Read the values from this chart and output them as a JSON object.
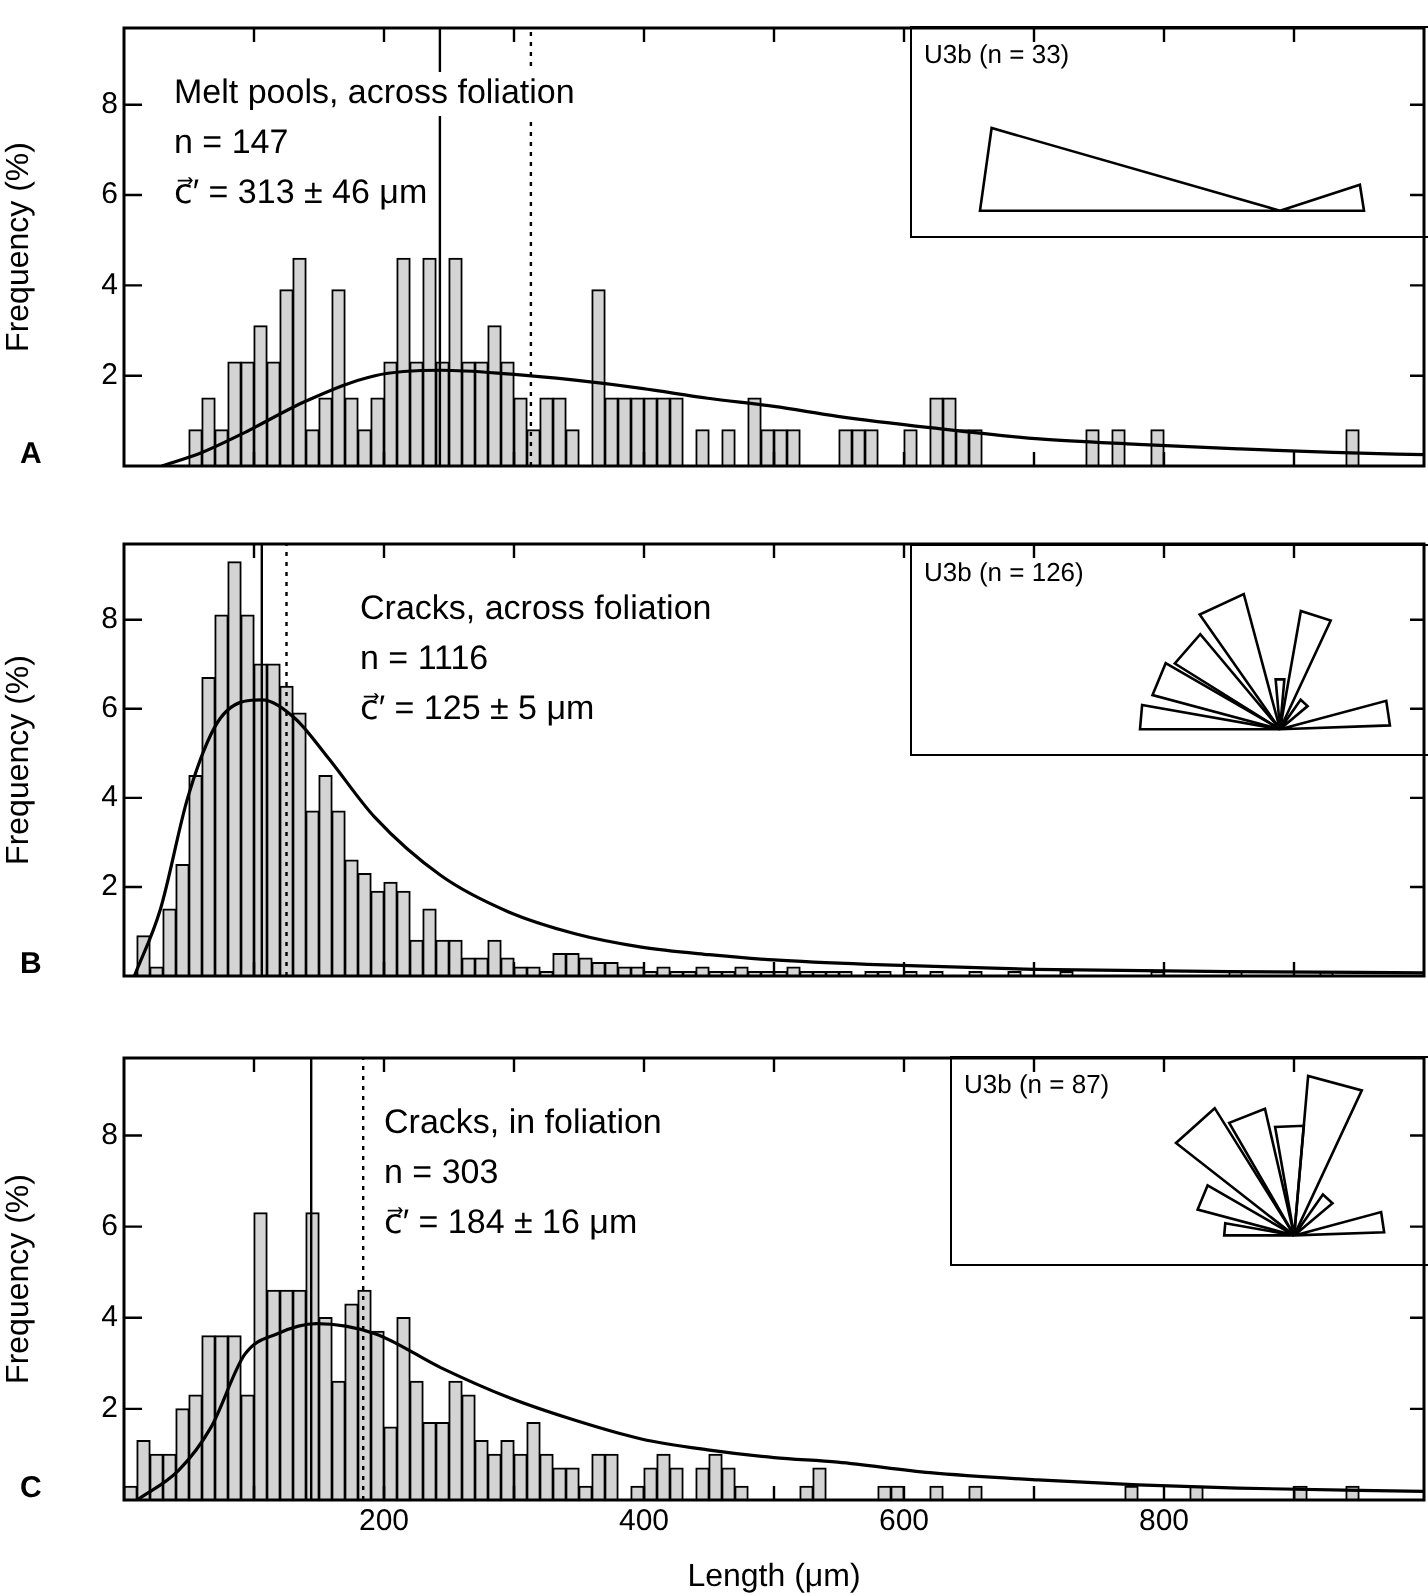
{
  "chart_data": [
    {
      "type": "histogram",
      "ylabel": "Frequency (%)",
      "xlim": [
        0,
        1000
      ],
      "ylim": [
        0,
        9.7
      ],
      "xticks": [
        {
          "value": 100,
          "label": null
        },
        {
          "value": 200,
          "label": null
        },
        {
          "value": 300,
          "label": null
        },
        {
          "value": 400,
          "label": null
        },
        {
          "value": 500,
          "label": null
        },
        {
          "value": 600,
          "label": null
        },
        {
          "value": 700,
          "label": null
        },
        {
          "value": 800,
          "label": null
        },
        {
          "value": 900,
          "label": null
        }
      ],
      "yticks": [
        2,
        4,
        6,
        8
      ],
      "tick_labels": "y",
      "grid": false,
      "legend": false,
      "annotations": [
        "Melt pools, across foliation",
        "n = 147",
        "c⃗′ = 313 ± 46 μm",
        "U3b (n = 33)",
        "A"
      ],
      "ref_lines": [
        {
          "axis": "x",
          "value": 243,
          "color": "#000000",
          "line_style": "solid"
        },
        {
          "axis": "x",
          "value": 313,
          "color": "#000000",
          "line_style": "dotted"
        }
      ],
      "series": [
        {
          "type": "histogram",
          "color": "#d4d4d4",
          "bins": [
            0,
            10,
            20,
            30,
            40,
            50,
            60,
            70,
            80,
            90,
            100,
            110,
            120,
            130,
            140,
            150,
            160,
            170,
            180,
            190,
            200,
            210,
            220,
            230,
            240,
            250,
            260,
            270,
            280,
            290,
            300,
            310,
            320,
            330,
            340,
            350,
            360,
            370,
            380,
            390,
            400,
            410,
            420,
            430,
            440,
            450,
            460,
            470,
            480,
            490,
            500,
            510,
            520,
            530,
            540,
            550,
            560,
            570,
            580,
            590,
            600,
            610,
            620,
            630,
            640,
            650,
            660,
            670,
            680,
            690,
            700,
            710,
            720,
            730,
            740,
            750,
            760,
            770,
            780,
            790,
            800,
            810,
            820,
            830,
            840,
            850,
            860,
            870,
            880,
            890,
            900,
            910,
            920,
            930,
            940,
            950,
            960,
            970,
            980,
            990,
            1000
          ],
          "values": [
            0,
            0,
            0,
            0,
            0,
            0.8,
            1.5,
            0.8,
            2.3,
            2.3,
            3.1,
            2.3,
            3.9,
            4.6,
            0.8,
            1.5,
            3.9,
            1.5,
            0.8,
            1.5,
            2.3,
            4.6,
            2.3,
            4.6,
            2.3,
            4.6,
            2.3,
            2.3,
            3.1,
            2.3,
            1.5,
            0.8,
            1.5,
            1.5,
            0.8,
            0,
            3.9,
            1.5,
            1.5,
            1.5,
            1.5,
            1.5,
            1.5,
            0,
            0.8,
            0,
            0.8,
            0,
            1.5,
            0.8,
            0.8,
            0.8,
            0,
            0,
            0,
            0.8,
            0.8,
            0.8,
            0,
            0,
            0.8,
            0,
            1.5,
            1.5,
            0.8,
            0.8,
            0,
            0,
            0,
            0,
            0,
            0,
            0,
            0,
            0.8,
            0,
            0.8,
            0,
            0,
            0.8,
            0,
            0,
            0,
            0,
            0,
            0,
            0,
            0,
            0,
            0,
            0,
            0,
            0,
            0,
            0.8,
            0,
            0,
            0,
            0,
            0
          ]
        },
        {
          "type": "line",
          "color": "#000000",
          "x": [
            29,
            60,
            90,
            141,
            193,
            244,
            295,
            347,
            398,
            449,
            500,
            549,
            620,
            704,
            780,
            857,
            930,
            1000
          ],
          "values": [
            0,
            0.3,
            0.7,
            1.45,
            2.0,
            2.12,
            2.04,
            1.9,
            1.72,
            1.5,
            1.32,
            1.1,
            0.85,
            0.6,
            0.48,
            0.38,
            0.3,
            0.25
          ]
        }
      ]
    },
    {
      "type": "histogram",
      "ylabel": "Frequency (%)",
      "xlim": [
        0,
        1000
      ],
      "ylim": [
        0,
        9.7
      ],
      "xticks": [
        {
          "value": 100,
          "label": null
        },
        {
          "value": 200,
          "label": null
        },
        {
          "value": 300,
          "label": null
        },
        {
          "value": 400,
          "label": null
        },
        {
          "value": 500,
          "label": null
        },
        {
          "value": 600,
          "label": null
        },
        {
          "value": 700,
          "label": null
        },
        {
          "value": 800,
          "label": null
        },
        {
          "value": 900,
          "label": null
        }
      ],
      "yticks": [
        2,
        4,
        6,
        8
      ],
      "tick_labels": "y",
      "grid": false,
      "legend": false,
      "annotations": [
        "Cracks, across foliation",
        "n = 1116",
        "c⃗′ = 125 ± 5 μm",
        "U3b (n = 126)",
        "B"
      ],
      "ref_lines": [
        {
          "axis": "x",
          "value": 106,
          "color": "#000000",
          "line_style": "solid"
        },
        {
          "axis": "x",
          "value": 125,
          "color": "#000000",
          "line_style": "dotted"
        }
      ],
      "series": [
        {
          "type": "histogram",
          "color": "#d4d4d4",
          "bins": [
            0,
            10,
            20,
            30,
            40,
            50,
            60,
            70,
            80,
            90,
            100,
            110,
            120,
            130,
            140,
            150,
            160,
            170,
            180,
            190,
            200,
            210,
            220,
            230,
            240,
            250,
            260,
            270,
            280,
            290,
            300,
            310,
            320,
            330,
            340,
            350,
            360,
            370,
            380,
            390,
            400,
            410,
            420,
            430,
            440,
            450,
            460,
            470,
            480,
            490,
            500,
            510,
            520,
            530,
            540,
            550,
            560,
            570,
            580,
            590,
            600,
            610,
            620,
            630,
            640,
            650,
            660,
            670,
            680,
            690,
            700,
            710,
            720,
            730,
            740,
            750,
            760,
            770,
            780,
            790,
            800,
            810,
            820,
            830,
            840,
            850,
            860,
            870,
            880,
            890,
            900,
            910,
            920,
            930,
            940,
            950,
            960,
            970,
            980,
            990,
            1000
          ],
          "values": [
            0,
            0.9,
            0.2,
            1.5,
            2.5,
            4.5,
            6.7,
            8.1,
            9.3,
            8.1,
            7.0,
            7.0,
            6.5,
            5.9,
            3.7,
            4.5,
            3.7,
            2.6,
            2.3,
            1.9,
            2.1,
            1.9,
            0.8,
            1.5,
            0.8,
            0.8,
            0.4,
            0.4,
            0.8,
            0.4,
            0.2,
            0.2,
            0.1,
            0.5,
            0.5,
            0.4,
            0.3,
            0.3,
            0.2,
            0.2,
            0.1,
            0.2,
            0.1,
            0.1,
            0.2,
            0.1,
            0.1,
            0.2,
            0.1,
            0.1,
            0.1,
            0.2,
            0.1,
            0.1,
            0.1,
            0.1,
            0,
            0.1,
            0.1,
            0,
            0.1,
            0,
            0.1,
            0,
            0,
            0.1,
            0,
            0,
            0.1,
            0,
            0,
            0,
            0.1,
            0,
            0,
            0,
            0,
            0,
            0,
            0.1,
            0,
            0,
            0,
            0,
            0,
            0.1,
            0,
            0,
            0,
            0,
            0,
            0,
            0.1,
            0,
            0,
            0,
            0,
            0,
            0,
            0
          ]
        },
        {
          "type": "line",
          "color": "#000000",
          "x": [
            8,
            28,
            49,
            70,
            90,
            106,
            131,
            157,
            193,
            244,
            295,
            347,
            398,
            450,
            500,
            572,
            700,
            850,
            1000
          ],
          "values": [
            0,
            1.5,
            4.0,
            5.6,
            6.15,
            6.2,
            5.8,
            4.9,
            3.56,
            2.25,
            1.45,
            0.95,
            0.65,
            0.48,
            0.36,
            0.26,
            0.15,
            0.1,
            0.07
          ]
        }
      ]
    },
    {
      "type": "histogram",
      "ylabel": "Frequency (%)",
      "xlabel": "Length (μm)",
      "xlim": [
        0,
        1000
      ],
      "ylim": [
        0,
        9.7
      ],
      "xticks": [
        {
          "value": 100,
          "label": null
        },
        {
          "value": 200,
          "label": "200"
        },
        {
          "value": 300,
          "label": null
        },
        {
          "value": 400,
          "label": "400"
        },
        {
          "value": 500,
          "label": null
        },
        {
          "value": 600,
          "label": "600"
        },
        {
          "value": 700,
          "label": null
        },
        {
          "value": 800,
          "label": "800"
        },
        {
          "value": 900,
          "label": null
        }
      ],
      "yticks": [
        2,
        4,
        6,
        8
      ],
      "grid": false,
      "legend": false,
      "annotations": [
        "Cracks, in foliation",
        "n = 303",
        "c⃗′ = 184 ± 16 μm",
        "U3b (n = 87)",
        "C"
      ],
      "ref_lines": [
        {
          "axis": "x",
          "value": 144,
          "color": "#000000",
          "line_style": "solid"
        },
        {
          "axis": "x",
          "value": 184,
          "color": "#000000",
          "line_style": "dotted"
        }
      ],
      "series": [
        {
          "type": "histogram",
          "color": "#d4d4d4",
          "bins": [
            0,
            10,
            20,
            30,
            40,
            50,
            60,
            70,
            80,
            90,
            100,
            110,
            120,
            130,
            140,
            150,
            160,
            170,
            180,
            190,
            200,
            210,
            220,
            230,
            240,
            250,
            260,
            270,
            280,
            290,
            300,
            310,
            320,
            330,
            340,
            350,
            360,
            370,
            380,
            390,
            400,
            410,
            420,
            430,
            440,
            450,
            460,
            470,
            480,
            490,
            500,
            510,
            520,
            530,
            540,
            550,
            560,
            570,
            580,
            590,
            600,
            610,
            620,
            630,
            640,
            650,
            660,
            670,
            680,
            690,
            700,
            710,
            720,
            730,
            740,
            750,
            760,
            770,
            780,
            790,
            800,
            810,
            820,
            830,
            840,
            850,
            860,
            870,
            880,
            890,
            900,
            910,
            920,
            930,
            940,
            950,
            960,
            970,
            980,
            990,
            1000
          ],
          "values": [
            0.3,
            1.3,
            1.0,
            1.0,
            2.0,
            2.3,
            3.6,
            3.6,
            3.6,
            2.3,
            6.3,
            4.6,
            4.6,
            4.6,
            6.3,
            4.0,
            2.6,
            4.3,
            4.6,
            3.7,
            1.6,
            4.0,
            2.6,
            1.7,
            1.7,
            2.6,
            2.3,
            1.3,
            1.0,
            1.3,
            1.0,
            1.7,
            1.0,
            0.7,
            0.7,
            0.3,
            1.0,
            1.0,
            0,
            0.3,
            0.7,
            1.0,
            0.7,
            0,
            0.7,
            1.0,
            0.7,
            0.3,
            0,
            0,
            0,
            0,
            0.3,
            0.7,
            0,
            0,
            0,
            0,
            0.3,
            0.3,
            0,
            0,
            0.3,
            0,
            0,
            0.3,
            0,
            0,
            0,
            0,
            0,
            0,
            0,
            0,
            0,
            0,
            0,
            0.3,
            0,
            0,
            0,
            0,
            0.3,
            0,
            0,
            0,
            0,
            0,
            0,
            0,
            0.3,
            0,
            0,
            0,
            0.3,
            0,
            0,
            0,
            0,
            0
          ]
        },
        {
          "type": "line",
          "color": "#000000",
          "x": [
            10,
            42,
            67,
            93,
            118,
            148,
            193,
            244,
            295,
            347,
            398,
            449,
            500,
            549,
            620,
            703,
            780,
            857,
            1000
          ],
          "values": [
            0,
            0.65,
            1.6,
            3.2,
            3.65,
            3.87,
            3.65,
            2.9,
            2.26,
            1.75,
            1.34,
            1.1,
            0.93,
            0.83,
            0.6,
            0.44,
            0.33,
            0.26,
            0.19
          ]
        }
      ]
    }
  ]
}
